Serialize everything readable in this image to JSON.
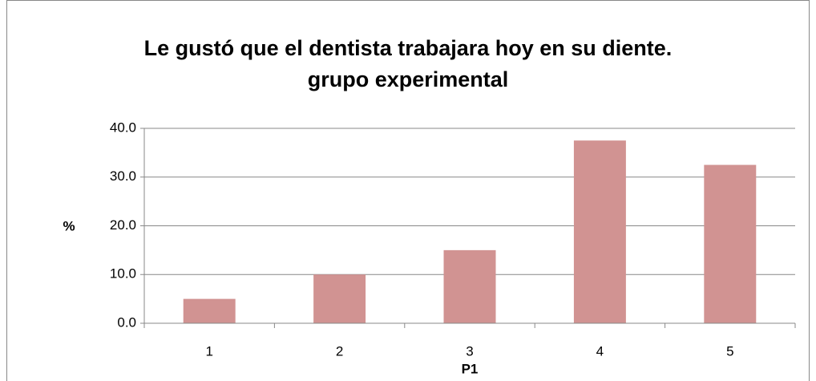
{
  "chart_data": {
    "type": "bar",
    "title": "Le gustó que el dentista trabajara hoy en su diente.",
    "subtitle": "grupo experimental",
    "xlabel": "P1",
    "ylabel": "%",
    "categories": [
      "1",
      "2",
      "3",
      "4",
      "5"
    ],
    "values": [
      5,
      10,
      15,
      37.5,
      32.5
    ],
    "color": "#d19392",
    "ylim": [
      0,
      40
    ],
    "yticks": [
      {
        "value": 0,
        "label": "0.0"
      },
      {
        "value": 10,
        "label": "10.0"
      },
      {
        "value": 20,
        "label": "20.0"
      },
      {
        "value": 30,
        "label": "30.0"
      },
      {
        "value": 40,
        "label": "40.0"
      }
    ],
    "grid": true
  }
}
